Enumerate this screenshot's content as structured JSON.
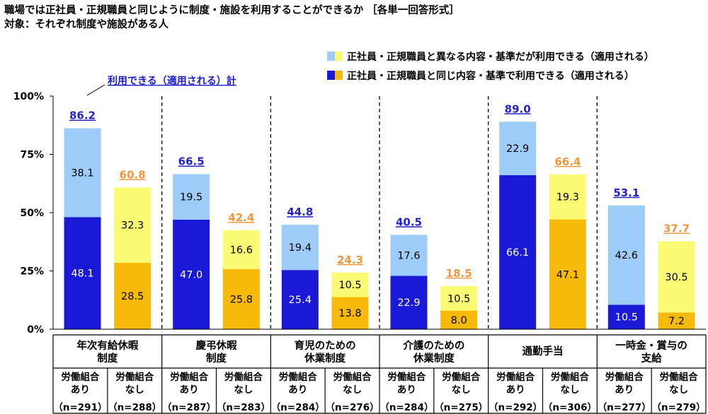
{
  "title": "職場では正社員・正規職員と同じように制度・施設を利用することができるか ［各単一回答形式］",
  "subtitle": "対象：それぞれ制度や施設がある人",
  "legend": {
    "item1": "正社員・正規職員と異なる内容・基準だが利用できる（適用される）",
    "item2": "正社員・正規職員と同じ内容・基準で利用できる（適用される）"
  },
  "annotation": "利用できる（適用される）計",
  "colors": {
    "union_same": "#1a1ad6",
    "union_diff": "#9cccf7",
    "union_total": "#2323c8",
    "nonunion_same": "#f7b90a",
    "nonunion_diff": "#fbfb73",
    "nonunion_total": "#f0963c"
  },
  "chart_data": {
    "type": "bar",
    "stacked": true,
    "ylim": [
      0,
      100
    ],
    "yticks": [
      "0%",
      "25%",
      "50%",
      "75%",
      "100%"
    ],
    "groups": [
      {
        "label": "年次有給休暇\n制度",
        "bars": [
          {
            "label": "労働組合\nあり",
            "n": "（n=291）",
            "same": 48.1,
            "diff": 38.1,
            "total": 86.2
          },
          {
            "label": "労働組合\nなし",
            "n": "（n=288）",
            "same": 28.5,
            "diff": 32.3,
            "total": 60.8
          }
        ]
      },
      {
        "label": "慶弔休暇\n制度",
        "bars": [
          {
            "label": "労働組合\nあり",
            "n": "（n=287）",
            "same": 47.0,
            "diff": 19.5,
            "total": 66.5
          },
          {
            "label": "労働組合\nなし",
            "n": "（n=283）",
            "same": 25.8,
            "diff": 16.6,
            "total": 42.4
          }
        ]
      },
      {
        "label": "育児のための\n休業制度",
        "bars": [
          {
            "label": "労働組合\nあり",
            "n": "（n=284）",
            "same": 25.4,
            "diff": 19.4,
            "total": 44.8
          },
          {
            "label": "労働組合\nなし",
            "n": "（n=276）",
            "same": 13.8,
            "diff": 10.5,
            "total": 24.3
          }
        ]
      },
      {
        "label": "介護のための\n休業制度",
        "bars": [
          {
            "label": "労働組合\nあり",
            "n": "（n=284）",
            "same": 22.9,
            "diff": 17.6,
            "total": 40.5
          },
          {
            "label": "労働組合\nなし",
            "n": "（n=275）",
            "same": 8.0,
            "diff": 10.5,
            "total": 18.5
          }
        ]
      },
      {
        "label": "通勤手当",
        "bars": [
          {
            "label": "労働組合\nあり",
            "n": "（n=292）",
            "same": 66.1,
            "diff": 22.9,
            "total": 89.0
          },
          {
            "label": "労働組合\nなし",
            "n": "（n=306）",
            "same": 47.1,
            "diff": 19.3,
            "total": 66.4
          }
        ]
      },
      {
        "label": "一時金・賞与の\n支給",
        "bars": [
          {
            "label": "労働組合\nあり",
            "n": "（n=277）",
            "same": 10.5,
            "diff": 42.6,
            "total": 53.1
          },
          {
            "label": "労働組合\nなし",
            "n": "（n=279）",
            "same": 7.2,
            "diff": 30.5,
            "total": 37.7
          }
        ]
      }
    ]
  }
}
